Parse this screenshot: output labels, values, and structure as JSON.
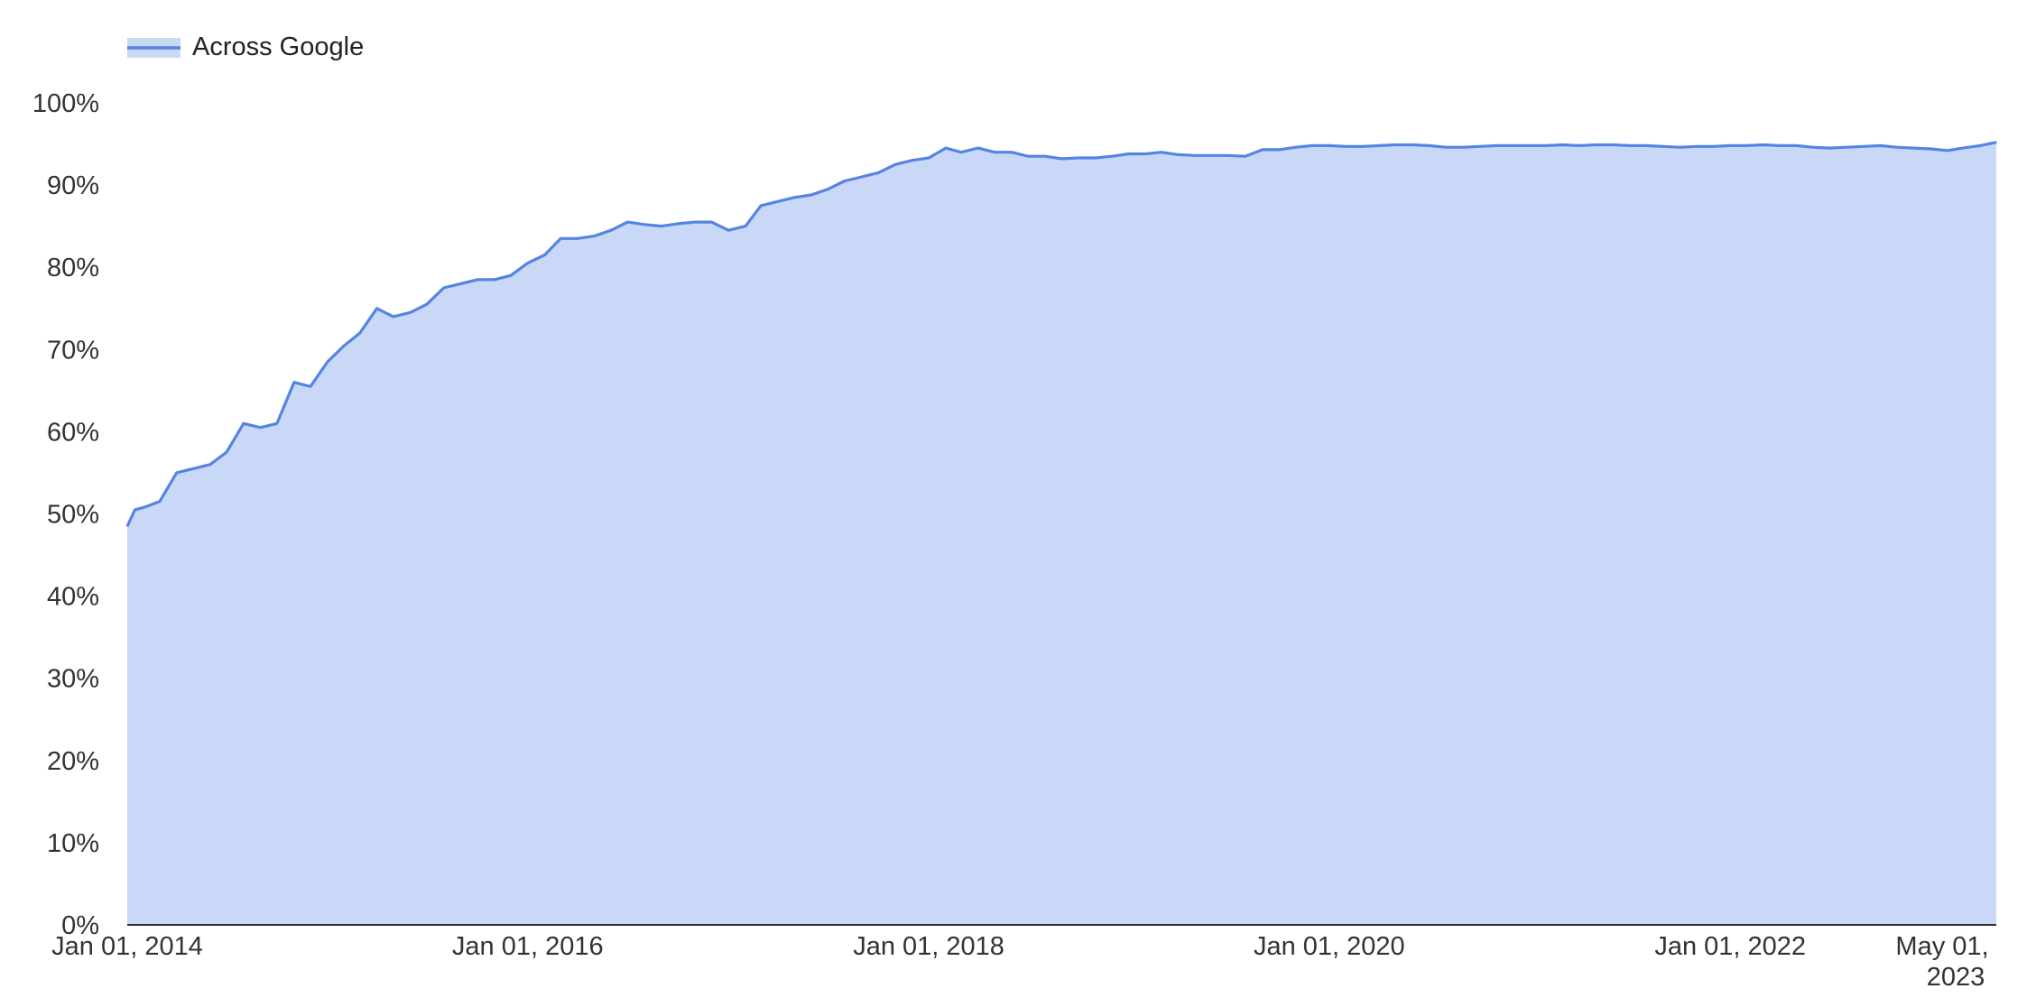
{
  "chart_data": {
    "type": "area",
    "legend": {
      "position": "top-left",
      "entries": [
        {
          "name": "Across Google",
          "color": "#5584e2"
        }
      ]
    },
    "series": [
      {
        "name": "Across Google",
        "line_color": "#5584e2",
        "fill_color": "#c9d8f6",
        "x": [
          "2014-01-01",
          "2014-01-15",
          "2014-02-01",
          "2014-03-01",
          "2014-04-01",
          "2014-05-01",
          "2014-06-01",
          "2014-07-01",
          "2014-08-01",
          "2014-09-01",
          "2014-10-01",
          "2014-11-01",
          "2014-12-01",
          "2015-01-01",
          "2015-02-01",
          "2015-03-01",
          "2015-04-01",
          "2015-05-01",
          "2015-06-01",
          "2015-07-01",
          "2015-08-01",
          "2015-09-01",
          "2015-10-01",
          "2015-11-01",
          "2015-12-01",
          "2016-01-01",
          "2016-02-01",
          "2016-03-01",
          "2016-04-01",
          "2016-05-01",
          "2016-06-01",
          "2016-07-01",
          "2016-08-01",
          "2016-09-01",
          "2016-10-01",
          "2016-11-01",
          "2016-12-01",
          "2017-01-01",
          "2017-02-01",
          "2017-03-01",
          "2017-04-01",
          "2017-05-01",
          "2017-06-01",
          "2017-07-01",
          "2017-08-01",
          "2017-09-01",
          "2017-10-01",
          "2017-11-01",
          "2017-12-01",
          "2018-01-01",
          "2018-02-01",
          "2018-03-01",
          "2018-04-01",
          "2018-05-01",
          "2018-06-01",
          "2018-07-01",
          "2018-08-01",
          "2018-09-01",
          "2018-10-01",
          "2018-11-01",
          "2018-12-01",
          "2019-01-01",
          "2019-02-01",
          "2019-03-01",
          "2019-04-01",
          "2019-05-01",
          "2019-06-01",
          "2019-07-01",
          "2019-08-01",
          "2019-09-01",
          "2019-10-01",
          "2019-11-01",
          "2019-12-01",
          "2020-01-01",
          "2020-02-01",
          "2020-03-01",
          "2020-04-01",
          "2020-05-01",
          "2020-06-01",
          "2020-07-01",
          "2020-08-01",
          "2020-09-01",
          "2020-10-01",
          "2020-11-01",
          "2020-12-01",
          "2021-01-01",
          "2021-02-01",
          "2021-03-01",
          "2021-04-01",
          "2021-05-01",
          "2021-06-01",
          "2021-07-01",
          "2021-08-01",
          "2021-09-01",
          "2021-10-01",
          "2021-11-01",
          "2021-12-01",
          "2022-01-01",
          "2022-02-01",
          "2022-03-01",
          "2022-04-01",
          "2022-05-01",
          "2022-06-01",
          "2022-07-01",
          "2022-08-01",
          "2022-09-01",
          "2022-10-01",
          "2022-11-01",
          "2022-12-01",
          "2023-01-01",
          "2023-02-01",
          "2023-03-01",
          "2023-04-01",
          "2023-05-01"
        ],
        "values": [
          48.5,
          50.5,
          50.8,
          51.5,
          55.0,
          55.5,
          56.0,
          57.5,
          61.0,
          60.5,
          61.0,
          66.0,
          65.5,
          68.5,
          70.5,
          72.0,
          75.0,
          74.0,
          74.5,
          75.5,
          77.5,
          78.0,
          78.5,
          78.5,
          79.0,
          80.5,
          81.5,
          83.5,
          83.5,
          83.8,
          84.5,
          85.5,
          85.2,
          85.0,
          85.3,
          85.5,
          85.5,
          84.5,
          85.0,
          87.5,
          88.0,
          88.5,
          88.8,
          89.5,
          90.5,
          91.0,
          91.5,
          92.5,
          93.0,
          93.3,
          94.5,
          94.0,
          94.5,
          94.0,
          94.0,
          93.5,
          93.5,
          93.2,
          93.3,
          93.3,
          93.5,
          93.8,
          93.8,
          94.0,
          93.7,
          93.6,
          93.6,
          93.6,
          93.5,
          94.3,
          94.3,
          94.6,
          94.8,
          94.8,
          94.7,
          94.7,
          94.8,
          94.9,
          94.9,
          94.8,
          94.6,
          94.6,
          94.7,
          94.8,
          94.8,
          94.8,
          94.8,
          94.9,
          94.8,
          94.9,
          94.9,
          94.8,
          94.8,
          94.7,
          94.6,
          94.7,
          94.7,
          94.8,
          94.8,
          94.9,
          94.8,
          94.8,
          94.6,
          94.5,
          94.6,
          94.7,
          94.8,
          94.6,
          94.5,
          94.4,
          94.2,
          94.5,
          94.8,
          95.2
        ]
      }
    ],
    "x_axis": {
      "type": "date",
      "range": [
        "2014-01-01",
        "2023-05-01"
      ],
      "ticks": [
        {
          "value": "2014-01-01",
          "lines": [
            "Jan 01, 2014"
          ]
        },
        {
          "value": "2016-01-01",
          "lines": [
            "Jan 01, 2016"
          ]
        },
        {
          "value": "2018-01-01",
          "lines": [
            "Jan 01, 2018"
          ]
        },
        {
          "value": "2020-01-01",
          "lines": [
            "Jan 01, 2020"
          ]
        },
        {
          "value": "2022-01-01",
          "lines": [
            "Jan 01, 2022"
          ]
        },
        {
          "value": "2023-05-01",
          "lines": [
            "May 01,",
            "2023"
          ]
        }
      ]
    },
    "y_axis": {
      "range": [
        0,
        100
      ],
      "ticks": [
        {
          "value": 0,
          "label": "0%"
        },
        {
          "value": 10,
          "label": "10%"
        },
        {
          "value": 20,
          "label": "20%"
        },
        {
          "value": 30,
          "label": "30%"
        },
        {
          "value": 40,
          "label": "40%"
        },
        {
          "value": 50,
          "label": "50%"
        },
        {
          "value": 60,
          "label": "60%"
        },
        {
          "value": 70,
          "label": "70%"
        },
        {
          "value": 80,
          "label": "80%"
        },
        {
          "value": 90,
          "label": "90%"
        },
        {
          "value": 100,
          "label": "100%"
        }
      ]
    },
    "grid": false
  }
}
